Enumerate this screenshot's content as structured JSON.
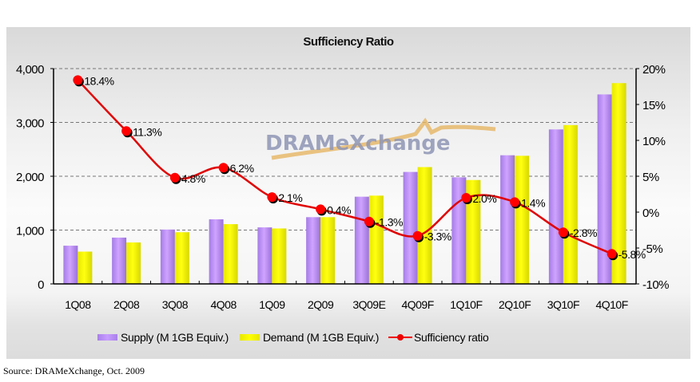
{
  "chart_data": {
    "type": "bar",
    "title": "Sufficiency Ratio",
    "categories": [
      "1Q08",
      "2Q08",
      "3Q08",
      "4Q08",
      "1Q09",
      "2Q09",
      "3Q09E",
      "4Q09F",
      "1Q10F",
      "2Q10F",
      "3Q10F",
      "4Q10F"
    ],
    "series": [
      {
        "name": "Supply (M 1GB Equiv.)",
        "type": "bar",
        "axis": "left",
        "color": "#bb8cf5",
        "values": [
          710,
          860,
          1010,
          1200,
          1050,
          1240,
          1620,
          2080,
          1980,
          2390,
          2870,
          3520
        ]
      },
      {
        "name": "Demand (M 1GB Equiv.)",
        "type": "bar",
        "axis": "left",
        "color": "#ffff00",
        "values": [
          600,
          770,
          960,
          1110,
          1030,
          1240,
          1640,
          2170,
          1930,
          2380,
          2950,
          3730
        ]
      },
      {
        "name": "Sufficiency ratio",
        "type": "line",
        "axis": "right",
        "color": "#ff0000",
        "values": [
          18.4,
          11.3,
          4.8,
          6.2,
          2.1,
          0.4,
          -1.3,
          -3.3,
          2.0,
          1.4,
          -2.8,
          -5.8
        ],
        "labels": [
          "18.4%",
          "11.3%",
          "4.8%",
          "6.2%",
          "2.1%",
          "0.4%",
          "-1.3%",
          "-3.3%",
          "2.0%",
          "1.4%",
          "-2.8%",
          "-5.8%"
        ]
      }
    ],
    "yaxis_left": {
      "min": 0,
      "max": 4000,
      "ticks": [
        0,
        1000,
        2000,
        3000,
        4000
      ],
      "tick_labels": [
        "0",
        "1,000",
        "2,000",
        "3,000",
        "4,000"
      ]
    },
    "yaxis_right": {
      "min": -10,
      "max": 20,
      "ticks": [
        -10,
        -5,
        0,
        5,
        10,
        15,
        20
      ],
      "tick_labels": [
        "-10%",
        "-5%",
        "0%",
        "5%",
        "10%",
        "15%",
        "20%"
      ]
    },
    "xlabel": "",
    "ylabel": "",
    "grid": true,
    "legend": "bottom",
    "watermark": "DRAMeXchange"
  },
  "source": "Source: DRAMeXchange, Oct. 2009"
}
